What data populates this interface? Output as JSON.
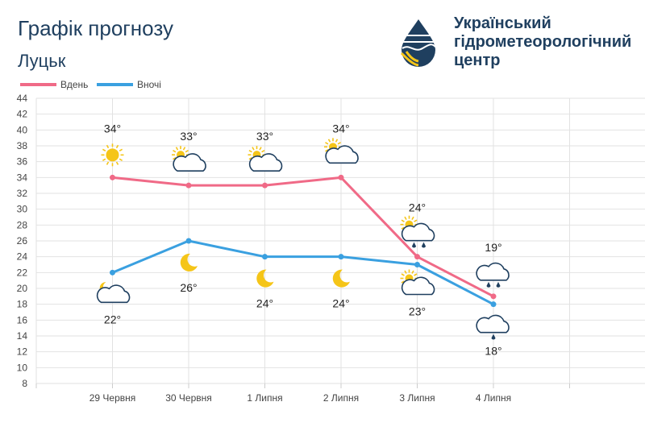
{
  "header": {
    "title": "Графік прогнозу",
    "city": "Луцьк"
  },
  "org": {
    "line1": "Український",
    "line2": "гідрометеорологічний",
    "line3": "центр"
  },
  "colors": {
    "day": "#f06a87",
    "night": "#3aa0e0",
    "sun": "#f5c518",
    "cloud": "#1f3f5f",
    "grid": "#e2e2e2",
    "text": "#444444"
  },
  "chart_data": {
    "type": "line",
    "categories": [
      "29 Червня",
      "30 Червня",
      "1 Липня",
      "2 Липня",
      "3 Липня",
      "4 Липня"
    ],
    "series": [
      {
        "name": "Вдень",
        "values": [
          34,
          33,
          33,
          34,
          24,
          19
        ],
        "labels": [
          "34°",
          "33°",
          "33°",
          "34°",
          "24°",
          "19°"
        ],
        "icons": [
          "sun-icon",
          "partly-cloudy-icon",
          "partly-cloudy-icon",
          "partly-cloudy-icon",
          "partly-cloudy-rain-icon",
          "cloud-rain-icon"
        ]
      },
      {
        "name": "Вночі",
        "values": [
          22,
          26,
          24,
          24,
          23,
          18
        ],
        "labels": [
          "22°",
          "26°",
          "24°",
          "24°",
          "23°",
          "18°"
        ],
        "icons": [
          "moon-cloud-icon",
          "moon-icon",
          "moon-icon",
          "moon-icon",
          "partly-cloudy-icon",
          "cloud-light-rain-icon"
        ]
      }
    ],
    "ylim": [
      8,
      44
    ],
    "yticks": [
      8,
      10,
      12,
      14,
      16,
      18,
      20,
      22,
      24,
      26,
      28,
      30,
      32,
      34,
      36,
      38,
      40,
      42,
      44
    ],
    "grid": true,
    "legend": "top-left"
  }
}
